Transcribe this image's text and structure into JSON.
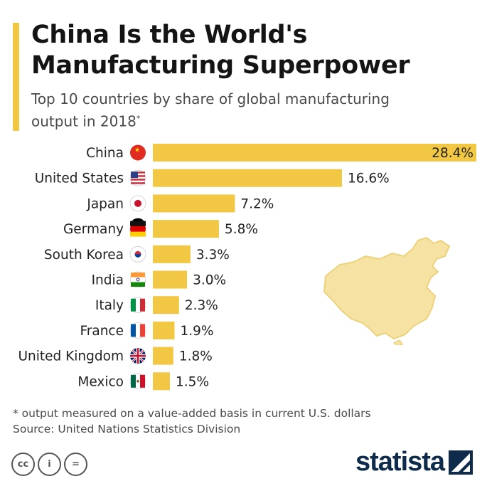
{
  "header": {
    "title_line1": "China Is the World's",
    "title_line2": "Manufacturing Superpower",
    "subtitle_main": "Top 10 countries by share of global manufacturing output in 2018",
    "subtitle_mark": "*"
  },
  "chart_data": {
    "type": "bar",
    "orientation": "horizontal",
    "title": "China Is the World's Manufacturing Superpower",
    "subtitle": "Top 10 countries by share of global manufacturing output in 2018*",
    "categories": [
      "China",
      "United States",
      "Japan",
      "Germany",
      "South Korea",
      "India",
      "Italy",
      "France",
      "United Kingdom",
      "Mexico"
    ],
    "values": [
      28.4,
      16.6,
      7.2,
      5.8,
      3.3,
      3.0,
      2.3,
      1.9,
      1.8,
      1.5
    ],
    "value_labels": [
      "28.4%",
      "16.6%",
      "7.2%",
      "5.8%",
      "3.3%",
      "3.0%",
      "2.3%",
      "1.9%",
      "1.8%",
      "1.5%"
    ],
    "unit": "%",
    "bar_color": "#f2c744",
    "label_inside_first_bar": true
  },
  "footer": {
    "footnote": "* output measured on a value-added basis in current U.S. dollars",
    "source": "Source: United Nations Statistics Division",
    "license_icons": [
      "creative-commons-icon",
      "attribution-icon",
      "no-derivatives-icon"
    ],
    "license_glyphs": [
      "cc",
      "i",
      "="
    ],
    "brand": "statista"
  },
  "colors": {
    "accent": "#f2c744",
    "map_fill": "#f6e3a4",
    "brand": "#0f2b4c",
    "text": "#1e1e1e"
  }
}
